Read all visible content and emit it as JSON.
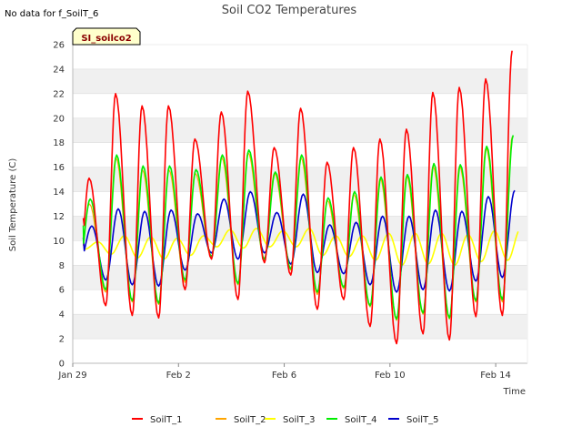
{
  "chart_data": {
    "type": "line",
    "title": "Soil CO2 Temperatures",
    "note": "No data for f_SoilT_6",
    "site_label": "SI_soilco2",
    "xlabel": "Time",
    "ylabel": "Soil Temperature (C)",
    "xlim": [
      0,
      17.2
    ],
    "ylim": [
      0,
      26
    ],
    "yticks": [
      0,
      2,
      4,
      6,
      8,
      10,
      12,
      14,
      16,
      18,
      20,
      22,
      24,
      26
    ],
    "xticks": [
      {
        "day": 0,
        "label": "Jan 29"
      },
      {
        "day": 4,
        "label": "Feb 2"
      },
      {
        "day": 8,
        "label": "Feb 6"
      },
      {
        "day": 12,
        "label": "Feb 10"
      },
      {
        "day": 16,
        "label": "Feb 14"
      }
    ],
    "grid": "horizontal bands",
    "legend_position": "bottom",
    "daily_extrema": {
      "SoilT_1": {
        "max": [
          15.1,
          22.0,
          21.0,
          21.0,
          18.3,
          20.5,
          22.2,
          17.6,
          20.8,
          16.4,
          17.6,
          18.3,
          19.1,
          22.1,
          22.5,
          23.2,
          25.5
        ],
        "min": [
          7.4,
          4.7,
          3.9,
          3.7,
          6.0,
          8.5,
          5.2,
          8.2,
          7.2,
          4.4,
          5.2,
          3.0,
          1.6,
          2.4,
          1.9,
          3.8,
          3.9
        ]
      },
      "SoilT_2": {
        "max": [
          13.0,
          16.8,
          15.8,
          15.8,
          15.5,
          16.8,
          17.2,
          15.5,
          16.8,
          13.3,
          13.8,
          15.1,
          15.3,
          16.1,
          16.1,
          17.6,
          18.5
        ],
        "min": [
          7.8,
          5.8,
          5.0,
          4.8,
          6.6,
          8.6,
          6.4,
          8.4,
          7.6,
          5.6,
          6.1,
          4.6,
          3.5,
          4.0,
          3.6,
          5.0,
          5.0
        ]
      },
      "SoilT_3": {
        "max": [
          9.9,
          10.4,
          10.3,
          10.2,
          10.4,
          10.9,
          11.0,
          10.8,
          11.0,
          10.4,
          10.4,
          10.6,
          10.6,
          10.6,
          10.5,
          10.8,
          11.0
        ],
        "min": [
          9.3,
          8.9,
          8.6,
          8.5,
          8.8,
          9.5,
          9.4,
          9.5,
          9.5,
          8.8,
          8.7,
          8.4,
          8.0,
          8.1,
          8.0,
          8.3,
          8.4
        ]
      },
      "SoilT_4": {
        "max": [
          13.4,
          17.0,
          16.1,
          16.1,
          15.8,
          17.0,
          17.4,
          15.6,
          17.0,
          13.5,
          14.0,
          15.2,
          15.4,
          16.3,
          16.2,
          17.7,
          18.6
        ],
        "min": [
          7.9,
          6.0,
          5.1,
          4.9,
          6.8,
          8.7,
          6.5,
          8.5,
          7.7,
          5.8,
          6.2,
          4.7,
          3.6,
          4.1,
          3.7,
          5.1,
          5.2
        ]
      },
      "SoilT_5": {
        "max": [
          11.2,
          12.6,
          12.4,
          12.5,
          12.2,
          13.4,
          14.0,
          12.3,
          13.8,
          11.3,
          11.5,
          12.0,
          12.0,
          12.5,
          12.4,
          13.6,
          14.1
        ],
        "min": [
          8.1,
          6.8,
          6.4,
          6.3,
          7.6,
          9.0,
          8.5,
          9.0,
          8.1,
          7.4,
          7.3,
          6.4,
          5.8,
          6.0,
          5.9,
          6.7,
          7.0
        ]
      }
    },
    "series": [
      {
        "name": "SoilT_1",
        "color": "#ff0000",
        "width": 1.6
      },
      {
        "name": "SoilT_2",
        "color": "#ffa500",
        "width": 1.2
      },
      {
        "name": "SoilT_3",
        "color": "#ffff00",
        "width": 1.6
      },
      {
        "name": "SoilT_4",
        "color": "#00ee00",
        "width": 1.6
      },
      {
        "name": "SoilT_5",
        "color": "#0000cc",
        "width": 1.6
      }
    ]
  },
  "colors": {
    "band": "#f0f0f0",
    "grid_line": "#dddddd",
    "axis": "#bbbbbb",
    "site_box_fill": "#ffffcc",
    "site_box_border": "#000000"
  }
}
